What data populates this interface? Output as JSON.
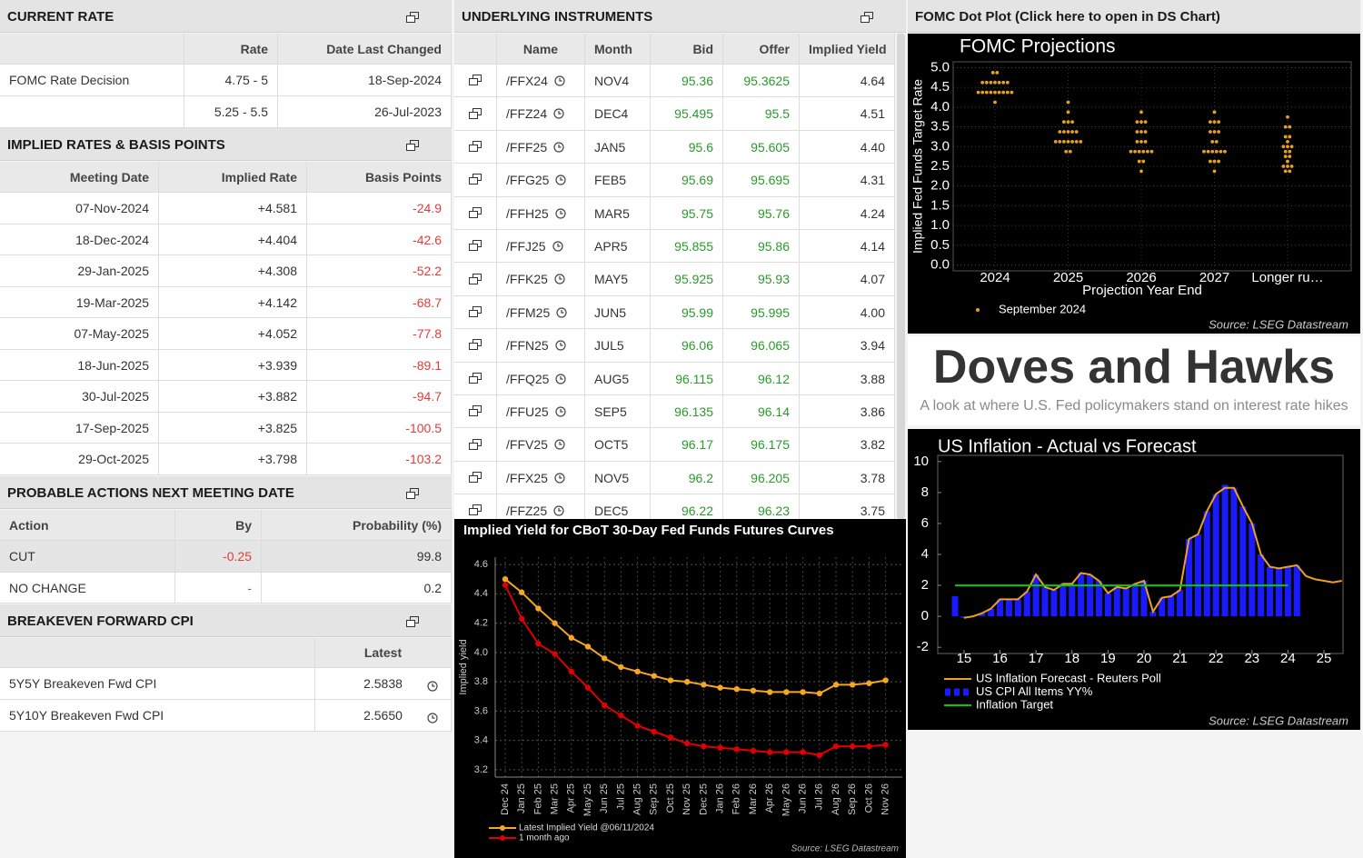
{
  "current_rate": {
    "title": "CURRENT RATE",
    "columns": [
      null,
      "Rate",
      "Date Last Changed"
    ],
    "rows": [
      [
        "FOMC Rate Decision",
        "4.75 - 5",
        "18-Sep-2024"
      ],
      [
        null,
        "5.25 - 5.5",
        "26-Jul-2023"
      ]
    ]
  },
  "implied_rates": {
    "title": "IMPLIED RATES & BASIS POINTS",
    "columns": [
      "Meeting Date",
      "Implied Rate",
      "Basis Points"
    ],
    "rows": [
      [
        "07-Nov-2024",
        "+4.581",
        "-24.9"
      ],
      [
        "18-Dec-2024",
        "+4.404",
        "-42.6"
      ],
      [
        "29-Jan-2025",
        "+4.308",
        "-52.2"
      ],
      [
        "19-Mar-2025",
        "+4.142",
        "-68.7"
      ],
      [
        "07-May-2025",
        "+4.052",
        "-77.8"
      ],
      [
        "18-Jun-2025",
        "+3.939",
        "-89.1"
      ],
      [
        "30-Jul-2025",
        "+3.882",
        "-94.7"
      ],
      [
        "17-Sep-2025",
        "+3.825",
        "-100.5"
      ],
      [
        "29-Oct-2025",
        "+3.798",
        "-103.2"
      ]
    ]
  },
  "probable_actions": {
    "title": "PROBABLE ACTIONS NEXT MEETING DATE",
    "columns": [
      "Action",
      "By",
      "Probability (%)"
    ],
    "rows": [
      [
        "CUT",
        "-0.25",
        "99.8"
      ],
      [
        "NO CHANGE",
        "-",
        "0.2"
      ]
    ]
  },
  "breakeven_cpi": {
    "title": "BREAKEVEN FORWARD CPI",
    "columns": [
      null,
      "Latest"
    ],
    "rows": [
      [
        "5Y5Y Breakeven Fwd CPI",
        "2.5838"
      ],
      [
        "5Y10Y Breakeven Fwd CPI",
        "2.5650"
      ]
    ]
  },
  "underlying_instruments": {
    "title": "UNDERLYING INSTRUMENTS",
    "columns": [
      null,
      "Name",
      "Month",
      "Bid",
      "Offer",
      "Implied Yield"
    ],
    "rows": [
      [
        "/FFX24",
        "NOV4",
        "95.36",
        "95.3625",
        "4.64"
      ],
      [
        "/FFZ24",
        "DEC4",
        "95.495",
        "95.5",
        "4.51"
      ],
      [
        "/FFF25",
        "JAN5",
        "95.6",
        "95.605",
        "4.40"
      ],
      [
        "/FFG25",
        "FEB5",
        "95.69",
        "95.695",
        "4.31"
      ],
      [
        "/FFH25",
        "MAR5",
        "95.75",
        "95.76",
        "4.24"
      ],
      [
        "/FFJ25",
        "APR5",
        "95.855",
        "95.86",
        "4.14"
      ],
      [
        "/FFK25",
        "MAY5",
        "95.925",
        "95.93",
        "4.07"
      ],
      [
        "/FFM25",
        "JUN5",
        "95.99",
        "95.995",
        "4.00"
      ],
      [
        "/FFN25",
        "JUL5",
        "96.06",
        "96.065",
        "3.94"
      ],
      [
        "/FFQ25",
        "AUG5",
        "96.115",
        "96.12",
        "3.88"
      ],
      [
        "/FFU25",
        "SEP5",
        "96.135",
        "96.14",
        "3.86"
      ],
      [
        "/FFV25",
        "OCT5",
        "96.17",
        "96.175",
        "3.82"
      ],
      [
        "/FFX25",
        "NOV5",
        "96.2",
        "96.205",
        "3.78"
      ],
      [
        "/FFZ25",
        "DEC5",
        "96.22",
        "96.23",
        "3.75"
      ]
    ]
  },
  "fomc_dot_plot": {
    "header": "FOMC Dot Plot (Click here to open in DS Chart)",
    "title": "FOMC Projections",
    "y_label": "Implied Fed Funds Target Rate",
    "x_label": "Projection Year End",
    "categories": [
      "2024",
      "2025",
      "2026",
      "2027",
      "Longer ru…"
    ],
    "ylim": [
      -0.15,
      5.15
    ],
    "yticks": [
      {
        "value": 0,
        "label": "0.0"
      },
      0.5,
      {
        "value": 1,
        "label": "1.0"
      },
      1.5,
      {
        "value": 2,
        "label": "2.0"
      },
      2.5,
      {
        "value": 3,
        "label": "3.0"
      },
      3.5,
      {
        "value": 4,
        "label": "4.0"
      },
      4.5,
      {
        "value": 5,
        "label": "5.0"
      }
    ],
    "grid": true,
    "color": "#e8a020",
    "legend": "September 2024",
    "dots": [
      [
        {
          "rate": 4.875,
          "count": 2
        },
        {
          "rate": 4.625,
          "count": 7
        },
        {
          "rate": 4.375,
          "count": 9
        },
        {
          "rate": 4.125,
          "count": 1
        }
      ],
      [
        {
          "rate": 4.125,
          "count": 1
        },
        {
          "rate": 3.875,
          "count": 1
        },
        {
          "rate": 3.625,
          "count": 3
        },
        {
          "rate": 3.375,
          "count": 5
        },
        {
          "rate": 3.125,
          "count": 7
        },
        {
          "rate": 2.875,
          "count": 2
        }
      ],
      [
        {
          "rate": 3.875,
          "count": 1
        },
        {
          "rate": 3.625,
          "count": 3
        },
        {
          "rate": 3.375,
          "count": 3
        },
        {
          "rate": 3.125,
          "count": 3
        },
        {
          "rate": 2.875,
          "count": 6
        },
        {
          "rate": 2.625,
          "count": 2
        },
        {
          "rate": 2.375,
          "count": 1
        }
      ],
      [
        {
          "rate": 3.875,
          "count": 1
        },
        {
          "rate": 3.625,
          "count": 3
        },
        {
          "rate": 3.375,
          "count": 3
        },
        {
          "rate": 3.125,
          "count": 2
        },
        {
          "rate": 2.875,
          "count": 6
        },
        {
          "rate": 2.625,
          "count": 3
        },
        {
          "rate": 2.375,
          "count": 1
        }
      ],
      [
        {
          "rate": 3.75,
          "count": 1
        },
        {
          "rate": 3.5,
          "count": 2
        },
        {
          "rate": 3.25,
          "count": 2
        },
        {
          "rate": 3.125,
          "count": 1
        },
        {
          "rate": 3.0,
          "count": 3
        },
        {
          "rate": 2.875,
          "count": 2
        },
        {
          "rate": 2.75,
          "count": 2
        },
        {
          "rate": 2.625,
          "count": 1
        },
        {
          "rate": 2.5,
          "count": 3
        },
        {
          "rate": 2.375,
          "count": 2
        }
      ]
    ],
    "source": "Source: LSEG Datastream"
  },
  "doves_and_hawks": {
    "title": "Doves and Hawks",
    "subtitle": "A look at where U.S. Fed policymakers stand on interest rate hikes"
  },
  "us_inflation": {
    "title": "US Inflation - Actual vs Forecast",
    "xlim": [
      14.27,
      25.53
    ],
    "xticks": [
      15,
      16,
      17,
      18,
      19,
      20,
      21,
      22,
      23,
      24,
      25
    ],
    "ylim": [
      -2.4,
      10.4
    ],
    "yticks": [
      -2,
      0,
      2,
      4,
      6,
      8,
      10
    ],
    "x": [
      14.75,
      15,
      15.25,
      15.5,
      15.75,
      16,
      16.25,
      16.5,
      16.75,
      17,
      17.25,
      17.5,
      17.75,
      18,
      18.25,
      18.5,
      18.75,
      19,
      19.25,
      19.5,
      19.75,
      20,
      20.25,
      20.5,
      20.75,
      21,
      21.25,
      21.5,
      21.75,
      22,
      22.25,
      22.5,
      22.75,
      23,
      23.25,
      23.5,
      23.75,
      24,
      24.25,
      24.5,
      24.75,
      25,
      25.25,
      25.5
    ],
    "series": [
      {
        "name": "US Inflation Forecast - Reuters Poll",
        "type": "line",
        "color": "#f0a020",
        "values": [
          null,
          -0.1,
          0,
          0.2,
          0.5,
          1.1,
          1.1,
          1.1,
          1.6,
          2.7,
          1.9,
          1.7,
          2.1,
          2.1,
          2.8,
          2.7,
          2.3,
          1.5,
          1.9,
          1.8,
          2.1,
          2.3,
          0.3,
          1.2,
          1.3,
          1.7,
          5.0,
          5.3,
          6.8,
          7.9,
          8.3,
          8.3,
          7.1,
          6.0,
          4.0,
          3.2,
          3.1,
          3.2,
          3.3,
          2.6,
          2.4,
          2.3,
          2.2,
          2.3
        ]
      },
      {
        "name": "US CPI All Items YY%",
        "type": "bar",
        "color": "#1a1aff",
        "values": [
          1.3,
          -0.1,
          0,
          0.2,
          0.5,
          1.1,
          1.1,
          1.1,
          1.6,
          2.7,
          1.9,
          1.7,
          2.1,
          2.1,
          2.8,
          2.7,
          2.3,
          1.5,
          1.9,
          1.8,
          2.1,
          2.3,
          0.3,
          1.2,
          1.3,
          1.7,
          5.0,
          5.3,
          6.8,
          7.9,
          8.5,
          8.3,
          7.1,
          6.0,
          4.0,
          3.2,
          3.1,
          3.2,
          3.3,
          null,
          null,
          null,
          null,
          null
        ]
      },
      {
        "name": "Inflation Target",
        "type": "line",
        "color": "#00d000",
        "values": [
          2,
          2,
          2,
          2,
          2,
          2,
          2,
          2,
          2,
          2,
          2,
          2,
          2,
          2,
          2,
          2,
          2,
          2,
          2,
          2,
          2,
          2,
          2,
          2,
          2,
          2,
          2,
          2,
          2,
          2,
          2,
          2,
          2,
          2,
          2,
          2,
          2,
          2,
          null,
          null,
          null,
          null,
          null,
          null
        ]
      }
    ],
    "source": "Source: LSEG Datastream"
  },
  "implied_yield_chart": {
    "title": "Implied Yield for CBoT 30-Day Fed Funds Futures Curves",
    "y_label": "Implied yield",
    "categories": [
      "Dec 24",
      "Jan 25",
      "Feb 25",
      "Mar 25",
      "Apr 25",
      "May 25",
      "Jun 25",
      "Jul 25",
      "Aug 25",
      "Sep 25",
      "Oct 25",
      "Nov 25",
      "Dec 25",
      "Jan 26",
      "Feb 26",
      "Mar 26",
      "Apr 26",
      "May 26",
      "Jun 26",
      "Jul 26",
      "Aug 26",
      "Sep 26",
      "Oct 26",
      "Nov 26"
    ],
    "ylim": [
      3.15,
      4.65
    ],
    "yticks": [
      3.2,
      3.4,
      3.6,
      3.8,
      {
        "value": 4,
        "label": "4.0"
      },
      4.2,
      4.4,
      4.6
    ],
    "grid": true,
    "series": [
      {
        "name": "Latest Implied Yield @06/11/2024",
        "color": "#f5a623",
        "values": [
          4.5,
          4.41,
          4.3,
          4.2,
          4.1,
          4.04,
          3.96,
          3.9,
          3.87,
          3.84,
          3.81,
          3.8,
          3.78,
          3.76,
          3.75,
          3.74,
          3.73,
          3.73,
          3.73,
          3.72,
          3.78,
          3.78,
          3.79,
          3.81
        ]
      },
      {
        "name": "1 month ago",
        "color": "#e00000",
        "values": [
          4.46,
          4.23,
          4.06,
          3.99,
          3.87,
          3.76,
          3.64,
          3.57,
          3.5,
          3.46,
          3.42,
          3.38,
          3.36,
          3.35,
          3.34,
          3.33,
          3.32,
          3.32,
          3.32,
          3.3,
          3.36,
          3.36,
          3.36,
          3.37
        ]
      }
    ],
    "source": "Source: LSEG Datastream"
  }
}
